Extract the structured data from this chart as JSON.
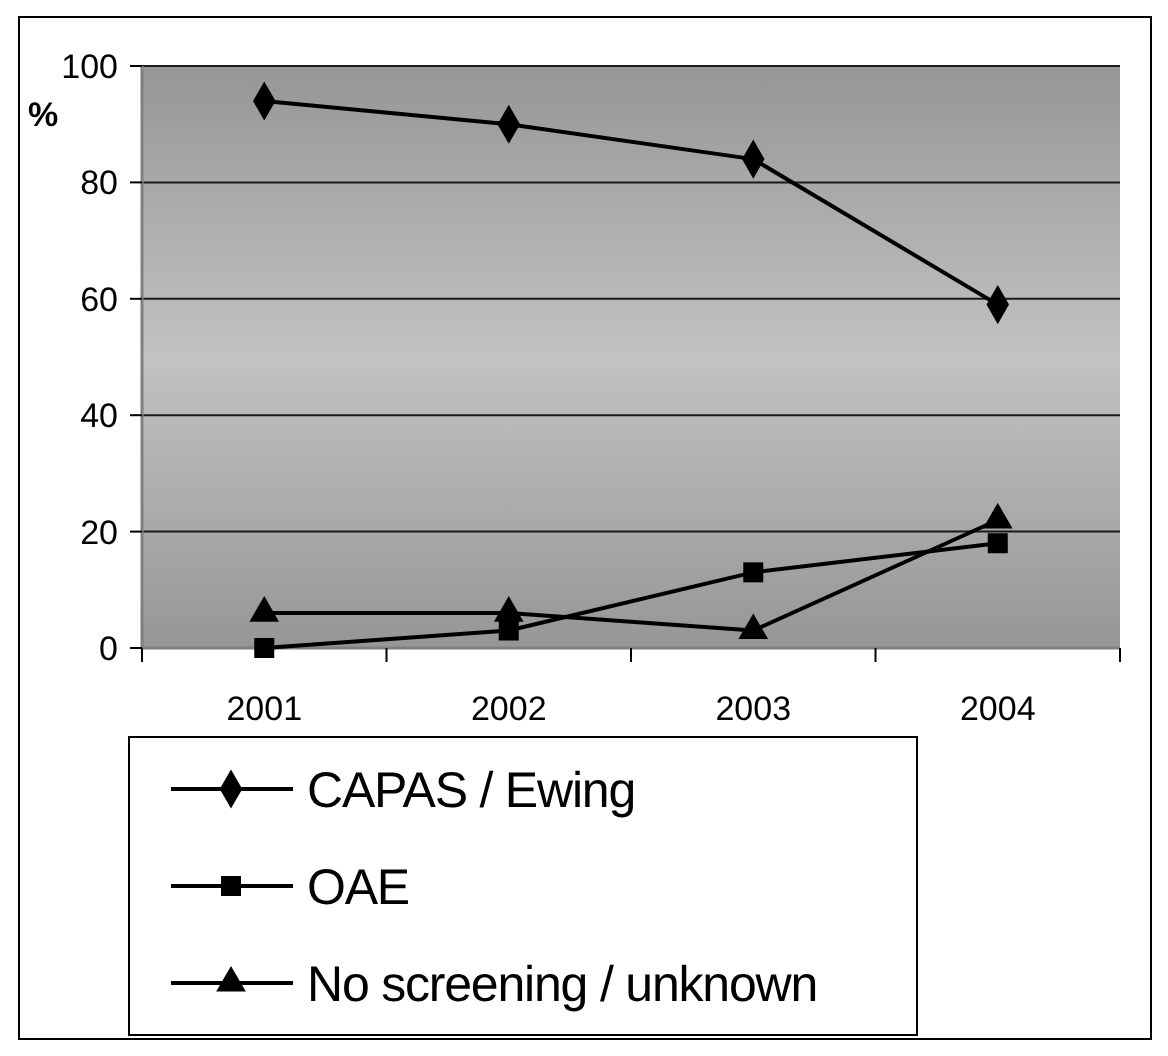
{
  "chart_data": {
    "type": "line",
    "ylabel": "%",
    "categories": [
      "2001",
      "2002",
      "2003",
      "2004"
    ],
    "series": [
      {
        "name": "CAPAS / Ewing",
        "color": "#000000",
        "marker": "diamond",
        "values": [
          94,
          90,
          84,
          59
        ]
      },
      {
        "name": "OAE",
        "color": "#000000",
        "marker": "square",
        "values": [
          0,
          3,
          13,
          18
        ]
      },
      {
        "name": "No screening / unknown",
        "color": "#000000",
        "marker": "triangle",
        "values": [
          6,
          6,
          3,
          22
        ]
      }
    ],
    "ylim": [
      0,
      100
    ],
    "yticks": [
      0,
      20,
      40,
      60,
      80,
      100
    ],
    "grid": "y",
    "legend": "bottom",
    "line_style": "solid"
  }
}
